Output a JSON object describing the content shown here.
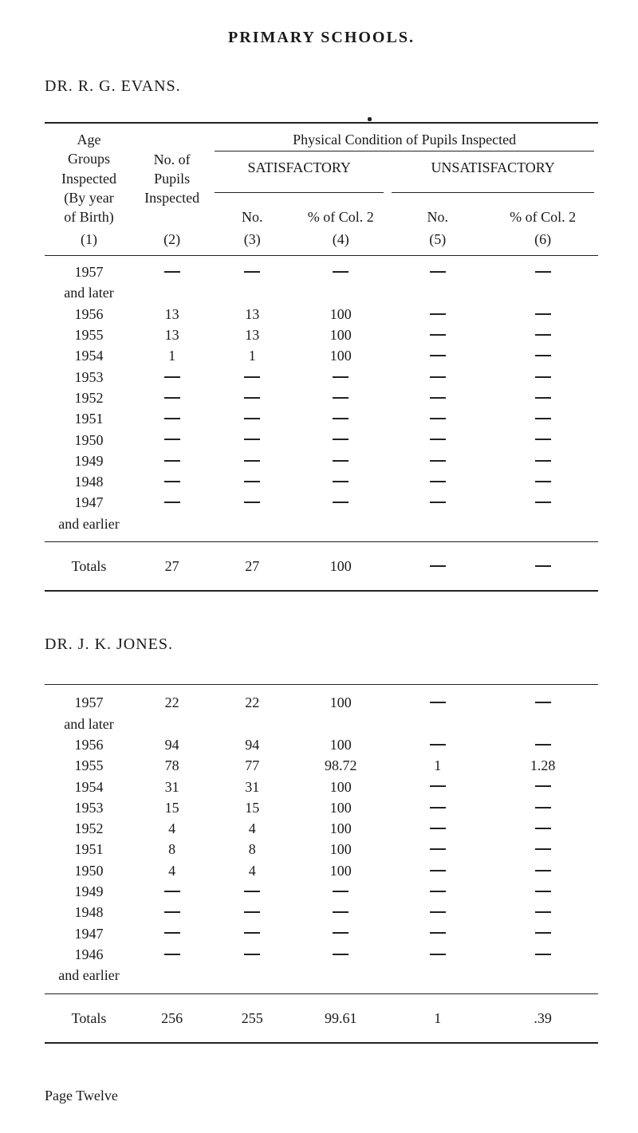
{
  "title": "PRIMARY SCHOOLS.",
  "doctor1": "DR. R. G. EVANS.",
  "doctor2": "DR. J. K. JONES.",
  "page_label": "Page Twelve",
  "headers": {
    "age_l1": "Age",
    "age_l2": "Groups",
    "age_l3": "Inspected",
    "age_l4": "(By year",
    "age_l5": "of Birth)",
    "pup_l1": "No. of",
    "pup_l2": "Pupils",
    "pup_l3": "Inspected",
    "phys": "Physical Condition of Pupils Inspected",
    "sat": "SATISFACTORY",
    "unsat": "UNSATISFACTORY",
    "no": "No.",
    "pct": "% of Col. 2",
    "c1": "(1)",
    "c2": "(2)",
    "c3": "(3)",
    "c4": "(4)",
    "c5": "(5)",
    "c6": "(6)"
  },
  "t1": {
    "rows": [
      {
        "label": "1957",
        "pup": "dash",
        "sno": "dash",
        "spct": "dash",
        "uno": "dash",
        "upct": "dash"
      },
      {
        "label": "and later",
        "pup": "",
        "sno": "",
        "spct": "",
        "uno": "",
        "upct": ""
      },
      {
        "label": "1956",
        "pup": "13",
        "sno": "13",
        "spct": "100",
        "uno": "dash",
        "upct": "dash"
      },
      {
        "label": "1955",
        "pup": "13",
        "sno": "13",
        "spct": "100",
        "uno": "dash",
        "upct": "dash"
      },
      {
        "label": "1954",
        "pup": "1",
        "sno": "1",
        "spct": "100",
        "uno": "dash",
        "upct": "dash"
      },
      {
        "label": "1953",
        "pup": "dash",
        "sno": "dash",
        "spct": "dash",
        "uno": "dash",
        "upct": "dash"
      },
      {
        "label": "1952",
        "pup": "dash",
        "sno": "dash",
        "spct": "dash",
        "uno": "dash",
        "upct": "dash"
      },
      {
        "label": "1951",
        "pup": "dash",
        "sno": "dash",
        "spct": "dash",
        "uno": "dash",
        "upct": "dash"
      },
      {
        "label": "1950",
        "pup": "dash",
        "sno": "dash",
        "spct": "dash",
        "uno": "dash",
        "upct": "dash"
      },
      {
        "label": "1949",
        "pup": "dash",
        "sno": "dash",
        "spct": "dash",
        "uno": "dash",
        "upct": "dash"
      },
      {
        "label": "1948",
        "pup": "dash",
        "sno": "dash",
        "spct": "dash",
        "uno": "dash",
        "upct": "dash"
      },
      {
        "label": "1947",
        "pup": "dash",
        "sno": "dash",
        "spct": "dash",
        "uno": "dash",
        "upct": "dash"
      },
      {
        "label": "and   earlier",
        "pup": "",
        "sno": "",
        "spct": "",
        "uno": "",
        "upct": ""
      }
    ],
    "totals": {
      "label": "Totals",
      "pup": "27",
      "sno": "27",
      "spct": "100",
      "uno": "dash",
      "upct": "dash"
    }
  },
  "t2": {
    "rows": [
      {
        "label": "1957",
        "pup": "22",
        "sno": "22",
        "spct": "100",
        "uno": "dash",
        "upct": "dash"
      },
      {
        "label": "and   later",
        "pup": "",
        "sno": "",
        "spct": "",
        "uno": "",
        "upct": ""
      },
      {
        "label": "1956",
        "pup": "94",
        "sno": "94",
        "spct": "100",
        "uno": "dash",
        "upct": "dash"
      },
      {
        "label": "1955",
        "pup": "78",
        "sno": "77",
        "spct": "98.72",
        "uno": "1",
        "upct": "1.28"
      },
      {
        "label": "1954",
        "pup": "31",
        "sno": "31",
        "spct": "100",
        "uno": "dash",
        "upct": "dash"
      },
      {
        "label": "1953",
        "pup": "15",
        "sno": "15",
        "spct": "100",
        "uno": "dash",
        "upct": "dash"
      },
      {
        "label": "1952",
        "pup": "4",
        "sno": "4",
        "spct": "100",
        "uno": "dash",
        "upct": "dash"
      },
      {
        "label": "1951",
        "pup": "8",
        "sno": "8",
        "spct": "100",
        "uno": "dash",
        "upct": "dash"
      },
      {
        "label": "1950",
        "pup": "4",
        "sno": "4",
        "spct": "100",
        "uno": "dash",
        "upct": "dash"
      },
      {
        "label": "1949",
        "pup": "dash",
        "sno": "dash",
        "spct": "dash",
        "uno": "dash",
        "upct": "dash"
      },
      {
        "label": "1948",
        "pup": "dash",
        "sno": "dash",
        "spct": "dash",
        "uno": "dash",
        "upct": "dash"
      },
      {
        "label": "1947",
        "pup": "dash",
        "sno": "dash",
        "spct": "dash",
        "uno": "dash",
        "upct": "dash"
      },
      {
        "label": "1946",
        "pup": "dash",
        "sno": "dash",
        "spct": "dash",
        "uno": "dash",
        "upct": "dash"
      },
      {
        "label": "and   earlier",
        "pup": "",
        "sno": "",
        "spct": "",
        "uno": "",
        "upct": ""
      }
    ],
    "totals": {
      "label": "Totals",
      "pup": "256",
      "sno": "255",
      "spct": "99.61",
      "uno": "1",
      "upct": ".39"
    }
  }
}
